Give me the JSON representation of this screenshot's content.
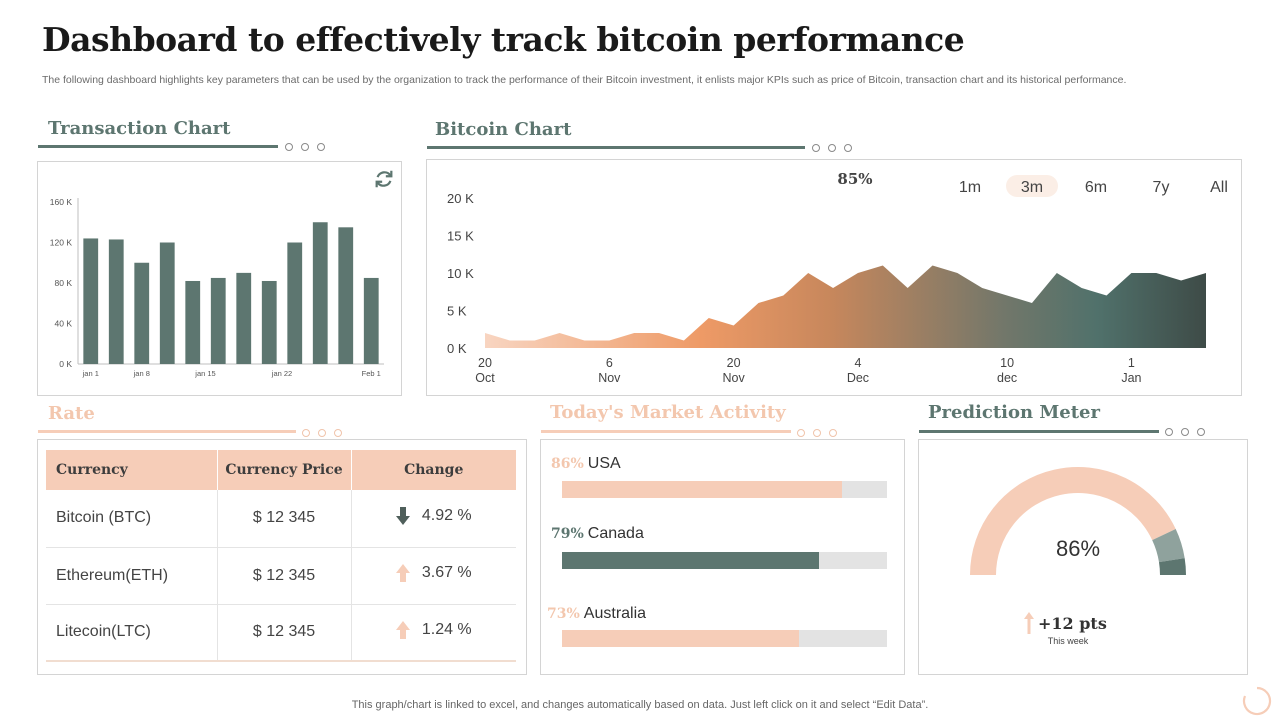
{
  "title": "Dashboard to effectively track bitcoin performance",
  "subtitle": "The following dashboard highlights key parameters that can be used by the organization to track the performance of their Bitcoin investment, it enlists major KPIs such as price of Bitcoin, transaction chart and its historical performance.",
  "colors": {
    "green": "#5d7670",
    "peach": "#f6cdb8",
    "peach_text": "#f3c7ae",
    "grey": "#d9d9d9"
  },
  "sections": {
    "transaction": "Transaction Chart",
    "bitcoin": "Bitcoin Chart",
    "rate": "Rate",
    "market": "Today's Market Activity",
    "prediction": "Prediction Meter"
  },
  "chart_data": [
    {
      "id": "transaction",
      "type": "bar",
      "title": "Transaction Chart",
      "values": [
        124,
        123,
        100,
        120,
        82,
        85,
        90,
        82,
        120,
        140,
        135,
        85
      ],
      "ylim": [
        0,
        160
      ],
      "yticks": [
        "0 K",
        "40 K",
        "80 K",
        "120 K",
        "160 K"
      ],
      "ytick_values": [
        0,
        40,
        80,
        120,
        160
      ],
      "xticks": [
        "jan 1",
        "jan 8",
        "jan 15",
        "jan 22",
        "Feb 1"
      ],
      "xtick_index": [
        0.5,
        2.5,
        5,
        8,
        11.5
      ],
      "grid": false
    },
    {
      "id": "bitcoin",
      "type": "area",
      "title": "Bitcoin Chart",
      "annotation": "85%",
      "ranges": [
        "1m",
        "3m",
        "6m",
        "7y",
        "All"
      ],
      "selected_range": "3m",
      "values": [
        2,
        1,
        1,
        2,
        1,
        1,
        2,
        2,
        1,
        4,
        3,
        6,
        7,
        10,
        8,
        10,
        11,
        8,
        11,
        10,
        8,
        7,
        6,
        10,
        8,
        7,
        10,
        10,
        9,
        10
      ],
      "ylim": [
        0,
        20
      ],
      "yticks": [
        "0 K",
        "5 K",
        "10 K",
        "15 K",
        "20 K"
      ],
      "ytick_values": [
        0,
        5,
        10,
        15,
        20
      ],
      "xticks": [
        {
          "day": "20",
          "month": "Oct",
          "i": 0
        },
        {
          "day": "6",
          "month": "Nov",
          "i": 5
        },
        {
          "day": "20",
          "month": "Nov",
          "i": 10
        },
        {
          "day": "4",
          "month": "Dec",
          "i": 15
        },
        {
          "day": "10",
          "month": "dec",
          "i": 21
        },
        {
          "day": "1",
          "month": "Jan",
          "i": 26
        }
      ],
      "grid": false
    },
    {
      "id": "market",
      "type": "bar",
      "title": "Today's Market Activity",
      "categories": [
        "USA",
        "Canada",
        "Australia"
      ],
      "values": [
        86,
        79,
        73
      ],
      "labels": [
        "86%",
        "79%",
        "73%"
      ]
    },
    {
      "id": "prediction",
      "type": "pie",
      "title": "Prediction Meter",
      "value": 86,
      "label": "86%"
    }
  ],
  "rate_table": {
    "headers": [
      "Currency",
      "Currency Price",
      "Change"
    ],
    "rows": [
      {
        "currency": "Bitcoin (BTC)",
        "price": "$ 12 345",
        "change": "4.92 %",
        "direction": "down"
      },
      {
        "currency": "Ethereum(ETH)",
        "price": "$ 12 345",
        "change": "3.67 %",
        "direction": "up"
      },
      {
        "currency": "Litecoin(LTC)",
        "price": "$ 12 345",
        "change": "1.24 %",
        "direction": "up"
      }
    ]
  },
  "prediction": {
    "pts": "+12 pts",
    "sub": "This week"
  },
  "footer": "This graph/chart is linked to excel,  and changes automatically based on data. Just left click on it and select “Edit Data”."
}
